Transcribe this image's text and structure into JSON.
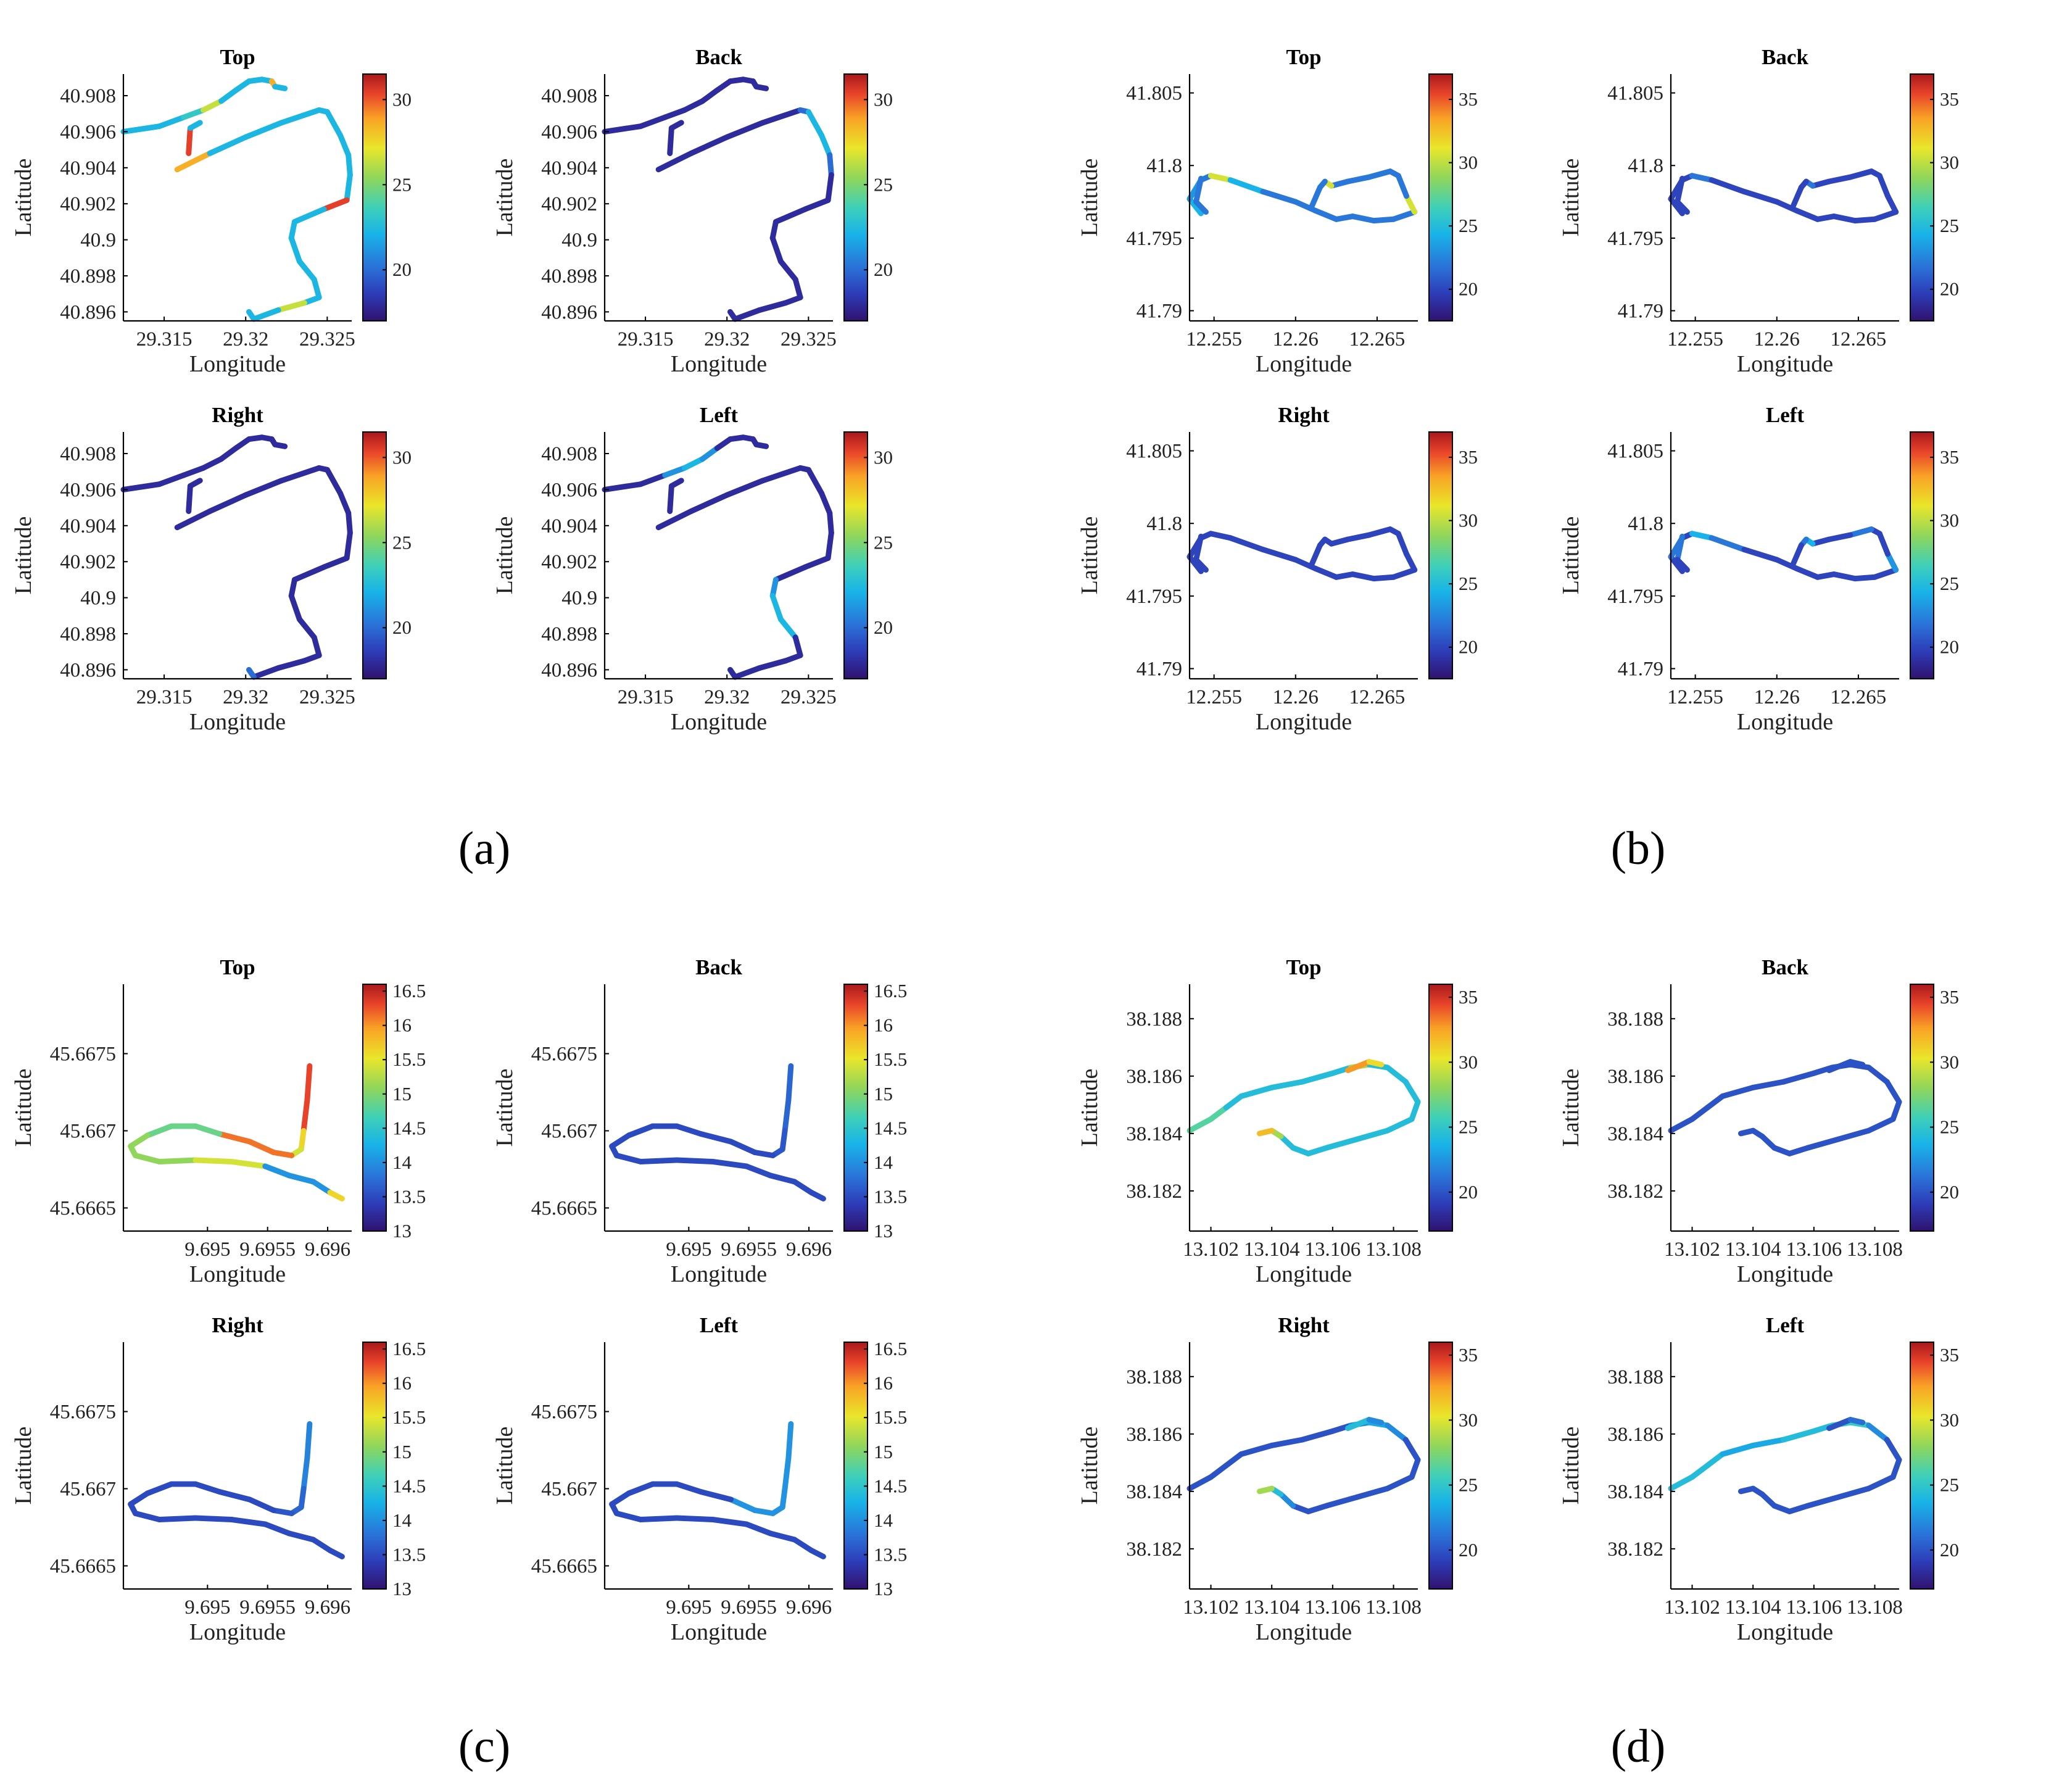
{
  "figure": {
    "axis_labels": {
      "x": "Longitude",
      "y": "Latitude"
    },
    "colors": {
      "colormap": [
        "#30126e",
        "#2d3cb8",
        "#2a73d8",
        "#18b3e8",
        "#3fd0b8",
        "#90d65a",
        "#e9e62a",
        "#f9a325",
        "#e8432a",
        "#a8181c"
      ]
    }
  },
  "chart_data": [
    {
      "id": "a",
      "label": "(a)",
      "xlim": [
        29.3125,
        29.3265
      ],
      "ylim": [
        40.8955,
        40.9092
      ],
      "xticks": [
        29.315,
        29.32,
        29.325
      ],
      "xtick_labels": [
        "29.315",
        "29.32",
        "29.325"
      ],
      "yticks": [
        40.896,
        40.898,
        40.9,
        40.902,
        40.904,
        40.906,
        40.908
      ],
      "ytick_labels": [
        "40.896",
        "40.898",
        "40.9",
        "40.902",
        "40.904",
        "40.906",
        "40.908"
      ],
      "clim": [
        17,
        31.5
      ],
      "cticks": [
        20,
        25,
        30
      ],
      "ctick_labels": [
        "20",
        "25",
        "30"
      ],
      "track": [
        [
          29.3125,
          40.906
        ],
        [
          29.3147,
          40.9063
        ],
        [
          29.3162,
          40.9068
        ],
        [
          29.3174,
          40.9072
        ],
        [
          29.3185,
          40.9077
        ],
        [
          29.3194,
          40.9083
        ],
        [
          29.3202,
          40.9088
        ],
        [
          29.321,
          40.9089
        ],
        [
          29.3216,
          40.9088
        ],
        [
          29.3218,
          40.9085
        ],
        [
          29.3224,
          40.9084
        ]
      ],
      "track2": [
        [
          29.3165,
          40.9048
        ],
        [
          29.3166,
          40.9062
        ],
        [
          29.3172,
          40.9065
        ]
      ],
      "track3": [
        [
          29.3158,
          40.9039
        ],
        [
          29.3178,
          40.9048
        ],
        [
          29.32,
          40.9057
        ],
        [
          29.3222,
          40.9065
        ],
        [
          29.3245,
          40.9072
        ],
        [
          29.325,
          40.9071
        ],
        [
          29.3258,
          40.9058
        ],
        [
          29.3263,
          40.9047
        ],
        [
          29.3264,
          40.9036
        ],
        [
          29.3262,
          40.9022
        ],
        [
          29.3248,
          40.9017
        ],
        [
          29.323,
          40.901
        ],
        [
          29.3228,
          40.9001
        ],
        [
          29.3233,
          40.8988
        ],
        [
          29.3242,
          40.8978
        ],
        [
          29.3245,
          40.8968
        ],
        [
          29.3236,
          40.8965
        ],
        [
          29.322,
          40.8961
        ],
        [
          29.3205,
          40.8956
        ],
        [
          29.3202,
          40.896
        ]
      ],
      "panels": [
        {
          "title": "Top",
          "values": [
            22,
            22,
            23,
            26,
            22,
            22,
            22,
            22,
            28,
            22,
            30,
            22,
            28,
            22,
            22,
            22,
            22,
            22,
            22,
            22,
            22,
            30,
            22,
            22,
            22,
            22,
            22,
            22,
            26,
            22,
            22,
            22,
            22,
            22,
            30,
            23
          ]
        },
        {
          "title": "Back",
          "values": [
            18,
            18,
            18,
            18,
            18,
            18,
            18,
            18,
            18,
            18,
            18,
            18,
            18,
            18,
            18,
            18,
            20,
            22,
            22,
            20,
            18,
            18,
            18,
            18,
            18,
            18,
            18,
            18,
            18,
            18,
            18,
            18,
            18,
            18,
            18,
            18
          ]
        },
        {
          "title": "Right",
          "values": [
            18,
            18,
            18,
            18,
            18,
            18,
            18,
            18,
            18,
            18,
            18,
            18,
            18,
            18,
            18,
            18,
            18,
            18,
            18,
            18,
            18,
            18,
            18,
            18,
            18,
            18,
            18,
            18,
            18,
            18,
            20,
            20,
            18,
            18,
            18,
            18
          ]
        },
        {
          "title": "Left",
          "values": [
            18,
            18,
            21,
            22,
            21,
            18,
            18,
            18,
            18,
            18,
            18,
            18,
            18,
            18,
            18,
            18,
            18,
            18,
            18,
            18,
            18,
            18,
            18,
            21,
            22,
            22,
            18,
            18,
            18,
            18,
            18,
            18,
            18,
            18,
            18,
            18
          ]
        }
      ]
    },
    {
      "id": "b",
      "label": "(b)",
      "xlim": [
        12.2535,
        12.2675
      ],
      "ylim": [
        41.7893,
        41.8063
      ],
      "xticks": [
        12.255,
        12.26,
        12.265
      ],
      "xtick_labels": [
        "12.255",
        "12.26",
        "12.265"
      ],
      "yticks": [
        41.79,
        41.795,
        41.8,
        41.805
      ],
      "ytick_labels": [
        "41.79",
        "41.795",
        "41.8",
        "41.805"
      ],
      "clim": [
        17.5,
        37
      ],
      "cticks": [
        20,
        25,
        30,
        35
      ],
      "ctick_labels": [
        "20",
        "25",
        "30",
        "35"
      ],
      "track": [
        [
          12.2542,
          41.7967
        ],
        [
          12.2535,
          41.7977
        ],
        [
          12.2542,
          41.799
        ],
        [
          12.2548,
          41.7993
        ],
        [
          12.256,
          41.799
        ],
        [
          12.258,
          41.7982
        ],
        [
          12.26,
          41.7975
        ],
        [
          12.2612,
          41.7969
        ],
        [
          12.2625,
          41.7963
        ],
        [
          12.2635,
          41.7965
        ],
        [
          12.2648,
          41.7962
        ],
        [
          12.266,
          41.7963
        ],
        [
          12.2673,
          41.7968
        ],
        [
          12.2668,
          41.7979
        ],
        [
          12.2663,
          41.7993
        ],
        [
          12.2658,
          41.7996
        ],
        [
          12.2645,
          41.7992
        ],
        [
          12.2632,
          41.7989
        ],
        [
          12.2622,
          41.7986
        ],
        [
          12.2618,
          41.7989
        ],
        [
          12.2615,
          41.7985
        ],
        [
          12.261,
          41.7972
        ]
      ],
      "track2": [
        [
          12.2542,
          41.7991
        ],
        [
          12.2539,
          41.7975
        ],
        [
          12.2545,
          41.7968
        ]
      ],
      "panels": [
        {
          "title": "Top",
          "values": [
            24,
            23,
            22,
            30,
            24,
            22,
            22,
            22,
            22,
            22,
            22,
            22,
            30,
            22,
            22,
            22,
            22,
            22,
            30,
            22,
            22,
            22,
            22,
            30,
            24
          ]
        },
        {
          "title": "Back",
          "values": [
            20,
            20,
            20,
            22,
            20,
            20,
            20,
            20,
            20,
            20,
            20,
            20,
            20,
            20,
            20,
            20,
            20,
            20,
            22,
            20,
            20,
            20,
            20,
            22,
            20
          ]
        },
        {
          "title": "Right",
          "values": [
            20,
            20,
            20,
            20,
            20,
            20,
            20,
            20,
            20,
            20,
            20,
            20,
            20,
            20,
            20,
            20,
            20,
            20,
            20,
            20,
            20,
            20,
            20,
            20,
            22
          ]
        },
        {
          "title": "Left",
          "values": [
            20,
            22,
            20,
            24,
            22,
            20,
            20,
            20,
            20,
            20,
            20,
            20,
            23,
            20,
            20,
            22,
            20,
            20,
            24,
            22,
            20,
            22,
            20,
            24,
            22
          ]
        }
      ]
    },
    {
      "id": "c",
      "label": "(c)",
      "xlim": [
        9.6943,
        9.6962
      ],
      "ylim": [
        45.66635,
        45.66795
      ],
      "xticks": [
        9.695,
        9.6955,
        9.696
      ],
      "xtick_labels": [
        "9.695",
        "9.6955",
        "9.696"
      ],
      "yticks": [
        45.6665,
        45.667,
        45.6675
      ],
      "ytick_labels": [
        "45.6665",
        "45.667",
        "45.6675"
      ],
      "clim": [
        13,
        16.6
      ],
      "cticks": [
        13,
        13.5,
        14,
        14.5,
        15,
        15.5,
        16,
        16.5
      ],
      "ctick_labels": [
        "13",
        "13.5",
        "14",
        "14.5",
        "15",
        "15.5",
        "16",
        "16.5"
      ],
      "track": [
        [
          9.69585,
          45.66742
        ],
        [
          9.69583,
          45.6672
        ],
        [
          9.6958,
          45.667
        ],
        [
          9.69578,
          45.66688
        ],
        [
          9.6957,
          45.66684
        ],
        [
          9.69555,
          45.66686
        ],
        [
          9.69535,
          45.66693
        ],
        [
          9.6951,
          45.66698
        ],
        [
          9.6949,
          45.66703
        ],
        [
          9.6947,
          45.66703
        ],
        [
          9.6945,
          45.66697
        ],
        [
          9.69436,
          45.6669
        ],
        [
          9.6944,
          45.66684
        ],
        [
          9.6946,
          45.6668
        ],
        [
          9.6949,
          45.66681
        ],
        [
          9.6952,
          45.6668
        ],
        [
          9.69548,
          45.66677
        ],
        [
          9.69568,
          45.66671
        ],
        [
          9.69588,
          45.66667
        ],
        [
          9.69602,
          45.6666
        ],
        [
          9.69612,
          45.66656
        ]
      ],
      "panels": [
        {
          "title": "Top",
          "values": [
            16.2,
            16.2,
            15.5,
            15.3,
            16,
            16,
            16,
            14.8,
            14.8,
            14.8,
            15,
            15,
            15,
            15,
            15.3,
            15.3,
            14,
            14,
            14,
            15.5,
            16.5
          ]
        },
        {
          "title": "Back",
          "values": [
            13.7,
            13.7,
            13.6,
            13.6,
            13.5,
            13.5,
            13.5,
            13.5,
            13.5,
            13.5,
            13.5,
            13.5,
            13.5,
            13.5,
            13.5,
            13.5,
            13.5,
            13.5,
            13.5,
            13.5,
            13.5
          ]
        },
        {
          "title": "Right",
          "values": [
            13.9,
            13.9,
            13.7,
            13.7,
            13.6,
            13.5,
            13.5,
            13.5,
            13.5,
            13.5,
            13.5,
            13.5,
            13.5,
            13.5,
            13.5,
            13.5,
            13.5,
            13.5,
            13.5,
            13.5,
            13.5
          ]
        },
        {
          "title": "Left",
          "values": [
            14,
            14,
            14,
            14,
            14,
            14,
            13.5,
            13.5,
            13.5,
            13.5,
            13.5,
            13.5,
            13.5,
            13.5,
            13.5,
            13.5,
            13.5,
            13.5,
            13.5,
            13.5,
            13.5
          ]
        }
      ]
    },
    {
      "id": "d",
      "label": "(d)",
      "xlim": [
        13.1013,
        13.1088
      ],
      "ylim": [
        38.1806,
        38.1892
      ],
      "xticks": [
        13.102,
        13.104,
        13.106,
        13.108
      ],
      "xtick_labels": [
        "13.102",
        "13.104",
        "13.106",
        "13.108"
      ],
      "yticks": [
        38.182,
        38.184,
        38.186,
        38.188
      ],
      "ytick_labels": [
        "38.182",
        "38.184",
        "38.186",
        "38.188"
      ],
      "clim": [
        17,
        36
      ],
      "cticks": [
        20,
        25,
        30,
        35
      ],
      "ctick_labels": [
        "20",
        "25",
        "30",
        "35"
      ],
      "track": [
        [
          13.1013,
          38.1841
        ],
        [
          13.102,
          38.1845
        ],
        [
          13.1025,
          38.1849
        ],
        [
          13.103,
          38.1853
        ],
        [
          13.104,
          38.1856
        ],
        [
          13.105,
          38.1858
        ],
        [
          13.106,
          38.1861
        ],
        [
          13.1066,
          38.1863
        ],
        [
          13.1072,
          38.1864
        ],
        [
          13.1078,
          38.1863
        ],
        [
          13.1084,
          38.1858
        ],
        [
          13.1088,
          38.1851
        ],
        [
          13.1086,
          38.1845
        ],
        [
          13.1078,
          38.1841
        ],
        [
          13.1068,
          38.1838
        ],
        [
          13.1058,
          38.1835
        ],
        [
          13.1052,
          38.1833
        ],
        [
          13.1047,
          38.1835
        ],
        [
          13.1043,
          38.1839
        ],
        [
          13.104,
          38.1841
        ],
        [
          13.1036,
          38.184
        ]
      ],
      "track2": [
        [
          13.1065,
          38.1862
        ],
        [
          13.1072,
          38.1865
        ],
        [
          13.1076,
          38.1864
        ]
      ],
      "panels": [
        {
          "title": "Top",
          "values": [
            26,
            26,
            24,
            24,
            24,
            24,
            24,
            28,
            24,
            24,
            24,
            24,
            24,
            24,
            24,
            24,
            24,
            24,
            28,
            31,
            32,
            30,
            32
          ]
        },
        {
          "title": "Back",
          "values": [
            20,
            20,
            20,
            20,
            20,
            20,
            20,
            20,
            20,
            20,
            20,
            20,
            20,
            20,
            20,
            20,
            20,
            20,
            20,
            20,
            20,
            20,
            20
          ]
        },
        {
          "title": "Right",
          "values": [
            20,
            20,
            20,
            20,
            20,
            20,
            20,
            22,
            23,
            22,
            20,
            20,
            20,
            20,
            20,
            20,
            20,
            22,
            24,
            28,
            24,
            22,
            24
          ]
        },
        {
          "title": "Left",
          "values": [
            24,
            24,
            24,
            23,
            23,
            24,
            24,
            25,
            25,
            22,
            20,
            20,
            20,
            20,
            20,
            20,
            20,
            20,
            20,
            20,
            20,
            21,
            20
          ]
        }
      ]
    }
  ]
}
